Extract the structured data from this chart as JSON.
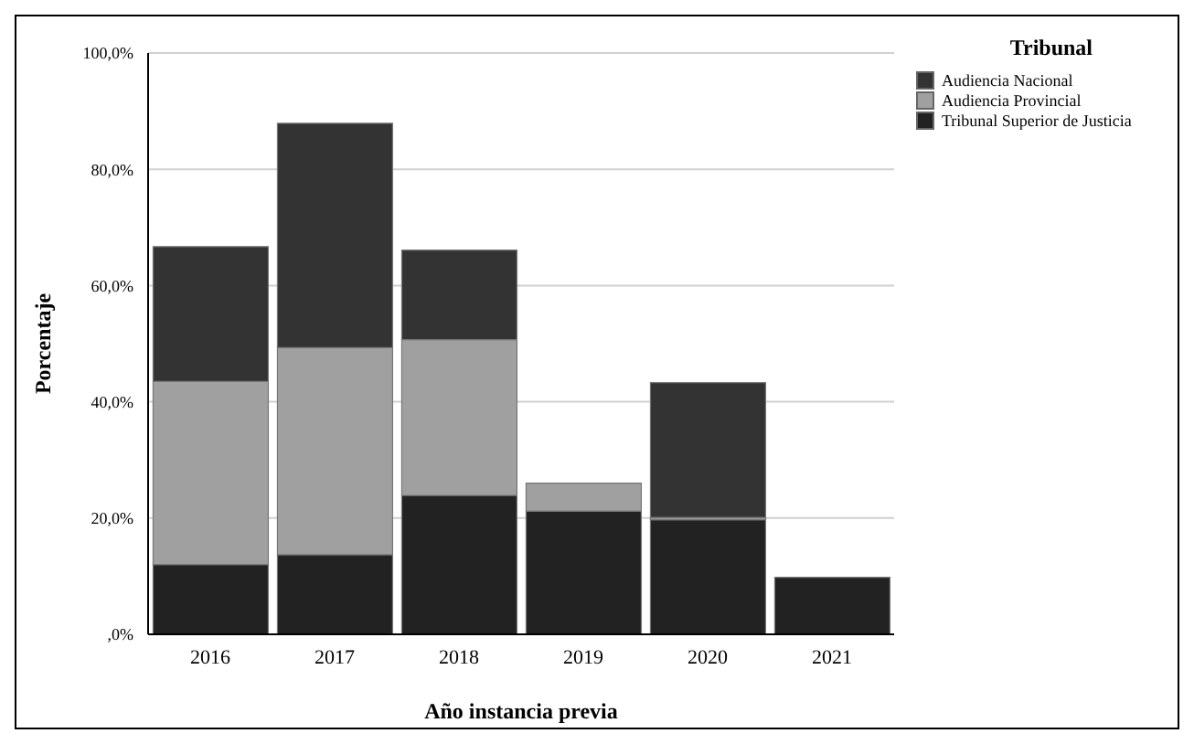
{
  "chart_data": {
    "type": "bar",
    "stacked": true,
    "xlabel": "Año instancia previa",
    "ylabel": "Porcentaje",
    "legend_title": "Tribunal",
    "legend": "top right",
    "grid": "y",
    "categories": [
      "2016",
      "2017",
      "2018",
      "2019",
      "2020",
      "2021"
    ],
    "series": [
      {
        "name": "Tribunal Superior de Justicia",
        "color": "#222222",
        "values": [
          12.0,
          13.7,
          23.9,
          21.2,
          19.7,
          9.8
        ]
      },
      {
        "name": "Audiencia Provincial",
        "color": "#a0a0a0",
        "values": [
          31.5,
          35.6,
          26.8,
          4.8,
          0.4,
          0
        ]
      },
      {
        "name": "Audiencia Nacional",
        "color": "#333333",
        "values": [
          23.2,
          38.6,
          15.4,
          0,
          23.2,
          0
        ]
      }
    ],
    "ylim": [
      0,
      100
    ],
    "yticks": [
      {
        "value": 0,
        "label": ",0%"
      },
      {
        "value": 20,
        "label": "20,0%"
      },
      {
        "value": 40,
        "label": "40,0%"
      },
      {
        "value": 60,
        "label": "60,0%"
      },
      {
        "value": 80,
        "label": "80,0%"
      },
      {
        "value": 100,
        "label": "100,0%"
      }
    ]
  }
}
